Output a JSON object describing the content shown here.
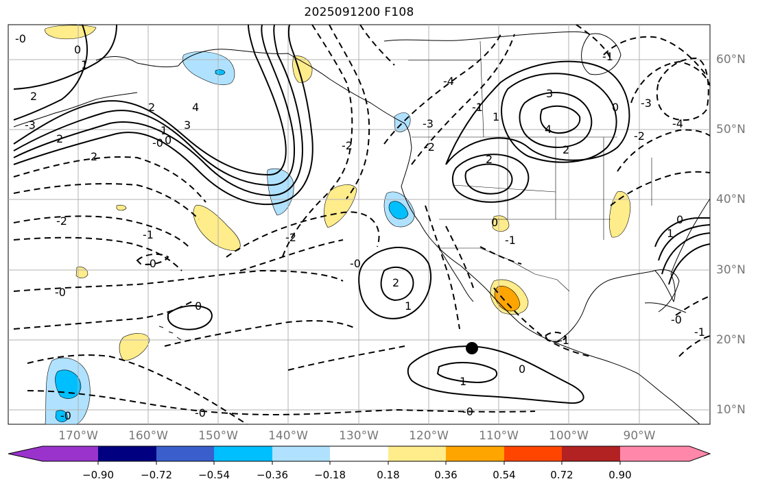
{
  "title": "2025091200 F108",
  "colors": {
    "land": "#000000",
    "grid": "#b0b0b0",
    "contour": "#000000",
    "marker": "#000000"
  },
  "map": {
    "lon_labels": [
      "170°W",
      "160°W",
      "150°W",
      "140°W",
      "130°W",
      "120°W",
      "110°W",
      "100°W",
      "90°W"
    ],
    "lat_labels": [
      "60°N",
      "50°N",
      "40°N",
      "30°N",
      "20°N",
      "10°N"
    ],
    "contour_labels": [
      "-0",
      "0",
      "1",
      "2",
      "3",
      "4",
      "-1",
      "-2",
      "-3",
      "-4"
    ],
    "point_marker": {
      "lon": -114.5,
      "lat": 18.8
    }
  },
  "colorbar": {
    "colors": [
      "#9933cc",
      "#000080",
      "#3a5fcd",
      "#00bfff",
      "#b0e2ff",
      "#ffffff",
      "#ffec8b",
      "#ffa500",
      "#ff4500",
      "#b22222",
      "#ff88aa"
    ],
    "tick_labels": [
      "−0.90",
      "−0.72",
      "−0.54",
      "−0.36",
      "−0.18",
      "0.18",
      "0.36",
      "0.54",
      "0.72",
      "0.90"
    ]
  }
}
